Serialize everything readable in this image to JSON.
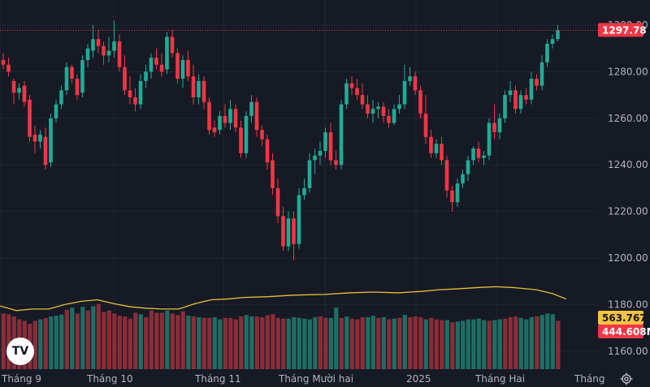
{
  "chart_data": {
    "type": "candlestick",
    "colors": {
      "up": "#22ab94",
      "down": "#f23645",
      "up_volume": "#1f6e64",
      "down_volume": "#8a2d38",
      "ma_line": "#e2c23a",
      "badge_volume": "#f5c242",
      "grid": "#222631",
      "background": "#161a25"
    },
    "y_ticks": [
      "1160.00",
      "1180.00",
      "1200.00",
      "1220.00",
      "1240.00",
      "1260.00",
      "1280.00",
      "1300.00"
    ],
    "y_range": [
      1154,
      1306
    ],
    "x_labels": [
      "Tháng 9",
      "Tháng 10",
      "Tháng 11",
      "Tháng Mười hai",
      "2025",
      "Tháng Hai",
      "Tháng"
    ],
    "last_price": "1297.78",
    "volume_badges": [
      "563.767M",
      "444.608M"
    ],
    "candles": [
      [
        1285,
        1288,
        1281,
        1283
      ],
      [
        1283,
        1286,
        1278,
        1280
      ],
      [
        1276,
        1277,
        1266,
        1271
      ],
      [
        1271,
        1275,
        1268,
        1273
      ],
      [
        1274,
        1276,
        1265,
        1267
      ],
      [
        1268,
        1270,
        1250,
        1252
      ],
      [
        1253,
        1257,
        1245,
        1250
      ],
      [
        1250,
        1255,
        1247,
        1253
      ],
      [
        1252,
        1256,
        1238,
        1240
      ],
      [
        1241,
        1262,
        1239,
        1260
      ],
      [
        1260,
        1268,
        1258,
        1266
      ],
      [
        1266,
        1274,
        1264,
        1272
      ],
      [
        1272,
        1284,
        1270,
        1282
      ],
      [
        1282,
        1283,
        1275,
        1277
      ],
      [
        1277,
        1279,
        1268,
        1270
      ],
      [
        1271,
        1287,
        1269,
        1285
      ],
      [
        1285,
        1292,
        1282,
        1290
      ],
      [
        1289,
        1300,
        1286,
        1294
      ],
      [
        1294,
        1298,
        1288,
        1291
      ],
      [
        1291,
        1293,
        1283,
        1287
      ],
      [
        1287,
        1295,
        1284,
        1289
      ],
      [
        1289,
        1302,
        1286,
        1293
      ],
      [
        1293,
        1296,
        1280,
        1282
      ],
      [
        1282,
        1287,
        1270,
        1272
      ],
      [
        1272,
        1278,
        1266,
        1269
      ],
      [
        1269,
        1273,
        1263,
        1266
      ],
      [
        1266,
        1279,
        1264,
        1276
      ],
      [
        1276,
        1283,
        1273,
        1280
      ],
      [
        1280,
        1288,
        1277,
        1286
      ],
      [
        1286,
        1290,
        1281,
        1283
      ],
      [
        1283,
        1288,
        1278,
        1280
      ],
      [
        1281,
        1297,
        1279,
        1295
      ],
      [
        1295,
        1298,
        1286,
        1288
      ],
      [
        1288,
        1290,
        1275,
        1277
      ],
      [
        1277,
        1287,
        1273,
        1285
      ],
      [
        1285,
        1289,
        1276,
        1278
      ],
      [
        1278,
        1283,
        1266,
        1269
      ],
      [
        1269,
        1279,
        1266,
        1276
      ],
      [
        1276,
        1278,
        1264,
        1267
      ],
      [
        1267,
        1269,
        1253,
        1255
      ],
      [
        1256,
        1259,
        1252,
        1254
      ],
      [
        1255,
        1263,
        1253,
        1261
      ],
      [
        1261,
        1266,
        1256,
        1258
      ],
      [
        1258,
        1268,
        1255,
        1264
      ],
      [
        1264,
        1266,
        1254,
        1256
      ],
      [
        1256,
        1259,
        1243,
        1245
      ],
      [
        1245,
        1263,
        1243,
        1261
      ],
      [
        1261,
        1270,
        1258,
        1267
      ],
      [
        1267,
        1269,
        1252,
        1255
      ],
      [
        1255,
        1257,
        1248,
        1251
      ],
      [
        1251,
        1253,
        1238,
        1241
      ],
      [
        1242,
        1245,
        1227,
        1230
      ],
      [
        1230,
        1234,
        1215,
        1218
      ],
      [
        1218,
        1222,
        1203,
        1205
      ],
      [
        1205,
        1220,
        1203,
        1217
      ],
      [
        1217,
        1220,
        1199,
        1206
      ],
      [
        1206,
        1230,
        1204,
        1227
      ],
      [
        1227,
        1234,
        1225,
        1230
      ],
      [
        1230,
        1245,
        1228,
        1242
      ],
      [
        1242,
        1247,
        1236,
        1244
      ],
      [
        1244,
        1250,
        1240,
        1246
      ],
      [
        1246,
        1256,
        1243,
        1254
      ],
      [
        1254,
        1258,
        1240,
        1242
      ],
      [
        1242,
        1246,
        1238,
        1240
      ],
      [
        1240,
        1268,
        1238,
        1266
      ],
      [
        1266,
        1277,
        1264,
        1275
      ],
      [
        1275,
        1278,
        1270,
        1273
      ],
      [
        1273,
        1277,
        1268,
        1270
      ],
      [
        1270,
        1275,
        1264,
        1266
      ],
      [
        1266,
        1270,
        1260,
        1262
      ],
      [
        1262,
        1268,
        1258,
        1264
      ],
      [
        1264,
        1267,
        1260,
        1265
      ],
      [
        1265,
        1267,
        1258,
        1261
      ],
      [
        1261,
        1264,
        1256,
        1258
      ],
      [
        1258,
        1266,
        1257,
        1264
      ],
      [
        1264,
        1270,
        1262,
        1266
      ],
      [
        1266,
        1283,
        1264,
        1276
      ],
      [
        1276,
        1282,
        1274,
        1278
      ],
      [
        1278,
        1280,
        1270,
        1272
      ],
      [
        1272,
        1274,
        1260,
        1262
      ],
      [
        1262,
        1270,
        1249,
        1252
      ],
      [
        1252,
        1255,
        1243,
        1245
      ],
      [
        1245,
        1251,
        1243,
        1249
      ],
      [
        1249,
        1252,
        1240,
        1242
      ],
      [
        1242,
        1244,
        1226,
        1229
      ],
      [
        1229,
        1231,
        1220,
        1224
      ],
      [
        1224,
        1234,
        1222,
        1232
      ],
      [
        1232,
        1238,
        1230,
        1236
      ],
      [
        1236,
        1244,
        1233,
        1242
      ],
      [
        1242,
        1248,
        1240,
        1247
      ],
      [
        1247,
        1250,
        1241,
        1243
      ],
      [
        1243,
        1246,
        1240,
        1244
      ],
      [
        1244,
        1260,
        1242,
        1258
      ],
      [
        1258,
        1266,
        1251,
        1254
      ],
      [
        1254,
        1262,
        1251,
        1260
      ],
      [
        1260,
        1272,
        1258,
        1270
      ],
      [
        1270,
        1276,
        1267,
        1272
      ],
      [
        1272,
        1274,
        1262,
        1264
      ],
      [
        1264,
        1272,
        1262,
        1270
      ],
      [
        1270,
        1273,
        1266,
        1268
      ],
      [
        1268,
        1280,
        1266,
        1277
      ],
      [
        1277,
        1279,
        1272,
        1274
      ],
      [
        1274,
        1287,
        1272,
        1284
      ],
      [
        1284,
        1294,
        1282,
        1292
      ],
      [
        1292,
        1296,
        1290,
        1294
      ],
      [
        1294,
        1300,
        1293,
        1297.78
      ]
    ],
    "volumes": [
      [
        380,
        "down"
      ],
      [
        375,
        "down"
      ],
      [
        360,
        "down"
      ],
      [
        340,
        "down"
      ],
      [
        330,
        "down"
      ],
      [
        310,
        "down"
      ],
      [
        330,
        "down"
      ],
      [
        340,
        "up"
      ],
      [
        350,
        "down"
      ],
      [
        360,
        "up"
      ],
      [
        365,
        "up"
      ],
      [
        372,
        "up"
      ],
      [
        405,
        "down"
      ],
      [
        420,
        "up"
      ],
      [
        380,
        "down"
      ],
      [
        425,
        "up"
      ],
      [
        400,
        "down"
      ],
      [
        430,
        "up"
      ],
      [
        445,
        "down"
      ],
      [
        390,
        "down"
      ],
      [
        400,
        "down"
      ],
      [
        380,
        "down"
      ],
      [
        365,
        "down"
      ],
      [
        360,
        "down"
      ],
      [
        345,
        "down"
      ],
      [
        385,
        "down"
      ],
      [
        375,
        "up"
      ],
      [
        355,
        "down"
      ],
      [
        400,
        "down"
      ],
      [
        385,
        "down"
      ],
      [
        385,
        "down"
      ],
      [
        400,
        "up"
      ],
      [
        380,
        "down"
      ],
      [
        370,
        "down"
      ],
      [
        395,
        "down"
      ],
      [
        365,
        "up"
      ],
      [
        360,
        "down"
      ],
      [
        355,
        "up"
      ],
      [
        350,
        "down"
      ],
      [
        350,
        "down"
      ],
      [
        355,
        "up"
      ],
      [
        340,
        "up"
      ],
      [
        350,
        "down"
      ],
      [
        350,
        "down"
      ],
      [
        340,
        "down"
      ],
      [
        360,
        "down"
      ],
      [
        370,
        "up"
      ],
      [
        360,
        "up"
      ],
      [
        360,
        "down"
      ],
      [
        355,
        "down"
      ],
      [
        368,
        "down"
      ],
      [
        375,
        "down"
      ],
      [
        350,
        "down"
      ],
      [
        345,
        "down"
      ],
      [
        345,
        "up"
      ],
      [
        355,
        "up"
      ],
      [
        350,
        "up"
      ],
      [
        345,
        "up"
      ],
      [
        340,
        "up"
      ],
      [
        355,
        "up"
      ],
      [
        360,
        "down"
      ],
      [
        350,
        "down"
      ],
      [
        350,
        "up"
      ],
      [
        420,
        "up"
      ],
      [
        350,
        "down"
      ],
      [
        360,
        "up"
      ],
      [
        345,
        "down"
      ],
      [
        340,
        "down"
      ],
      [
        355,
        "down"
      ],
      [
        355,
        "up"
      ],
      [
        365,
        "up"
      ],
      [
        350,
        "down"
      ],
      [
        355,
        "up"
      ],
      [
        340,
        "down"
      ],
      [
        345,
        "up"
      ],
      [
        350,
        "down"
      ],
      [
        370,
        "up"
      ],
      [
        355,
        "down"
      ],
      [
        360,
        "down"
      ],
      [
        355,
        "down"
      ],
      [
        340,
        "up"
      ],
      [
        350,
        "down"
      ],
      [
        340,
        "down"
      ],
      [
        335,
        "down"
      ],
      [
        335,
        "up"
      ],
      [
        320,
        "down"
      ],
      [
        325,
        "up"
      ],
      [
        330,
        "up"
      ],
      [
        340,
        "up"
      ],
      [
        340,
        "up"
      ],
      [
        345,
        "up"
      ],
      [
        335,
        "up"
      ],
      [
        330,
        "down"
      ],
      [
        335,
        "up"
      ],
      [
        340,
        "up"
      ],
      [
        345,
        "down"
      ],
      [
        355,
        "down"
      ],
      [
        360,
        "down"
      ],
      [
        350,
        "up"
      ],
      [
        340,
        "up"
      ],
      [
        355,
        "up"
      ],
      [
        360,
        "down"
      ],
      [
        370,
        "up"
      ],
      [
        380,
        "up"
      ],
      [
        375,
        "up"
      ],
      [
        330,
        "down"
      ]
    ],
    "ma": [
      [
        0,
        382
      ],
      [
        20,
        376
      ],
      [
        40,
        378
      ],
      [
        60,
        378
      ],
      [
        80,
        384
      ],
      [
        100,
        388
      ],
      [
        120,
        390
      ],
      [
        140,
        385
      ],
      [
        160,
        381
      ],
      [
        180,
        379
      ],
      [
        200,
        378
      ],
      [
        220,
        378
      ],
      [
        240,
        385
      ],
      [
        260,
        390
      ],
      [
        280,
        391
      ],
      [
        300,
        393
      ],
      [
        330,
        394
      ],
      [
        360,
        396
      ],
      [
        400,
        397
      ],
      [
        430,
        399
      ],
      [
        460,
        400
      ],
      [
        490,
        399
      ],
      [
        520,
        401
      ],
      [
        540,
        403
      ],
      [
        560,
        404
      ],
      [
        590,
        406
      ],
      [
        610,
        407
      ],
      [
        630,
        406
      ],
      [
        660,
        403
      ],
      [
        680,
        398
      ],
      [
        697,
        391
      ]
    ]
  }
}
